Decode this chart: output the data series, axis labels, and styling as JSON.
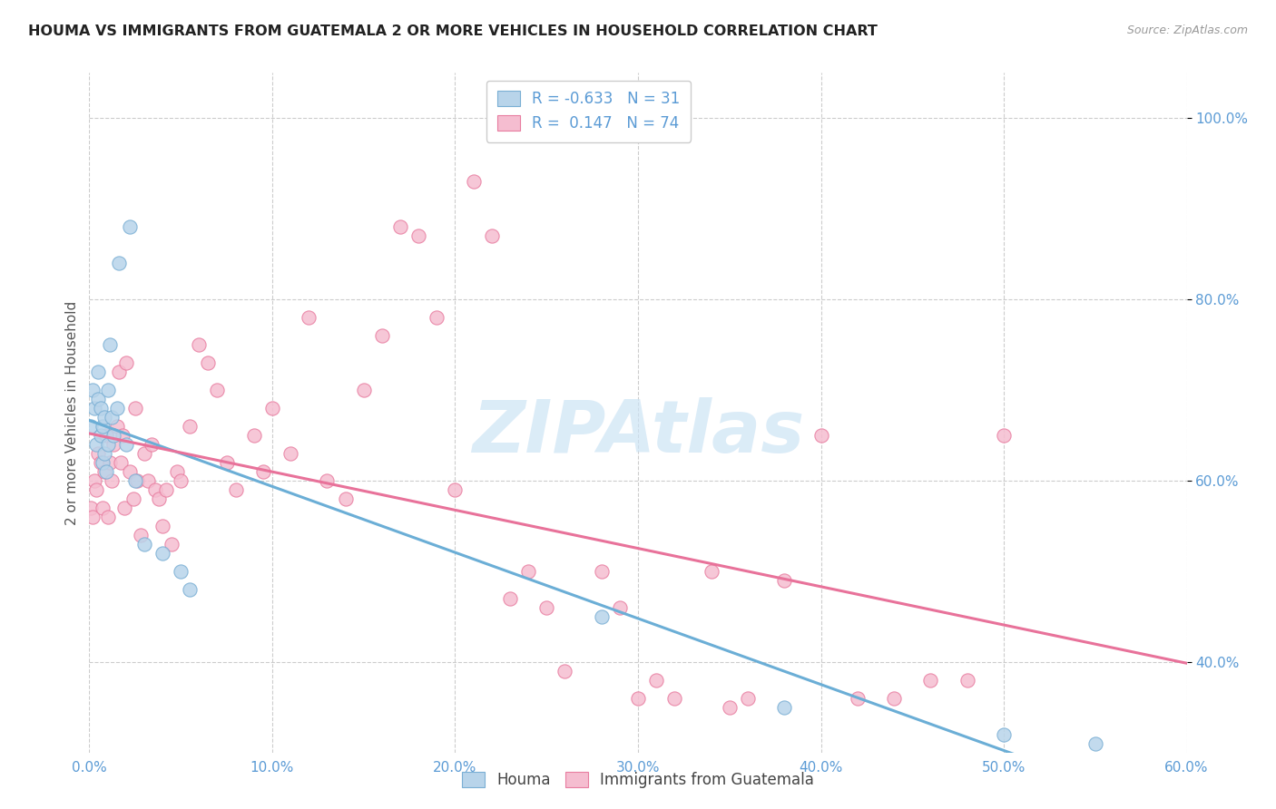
{
  "title": "HOUMA VS IMMIGRANTS FROM GUATEMALA 2 OR MORE VEHICLES IN HOUSEHOLD CORRELATION CHART",
  "source": "Source: ZipAtlas.com",
  "ylabel": "2 or more Vehicles in Household",
  "xlim": [
    0.0,
    0.6
  ],
  "ylim": [
    0.3,
    1.05
  ],
  "xtick_labels": [
    "0.0%",
    "10.0%",
    "20.0%",
    "30.0%",
    "40.0%",
    "50.0%",
    "60.0%"
  ],
  "xtick_values": [
    0.0,
    0.1,
    0.2,
    0.3,
    0.4,
    0.5,
    0.6
  ],
  "ytick_labels": [
    "40.0%",
    "60.0%",
    "80.0%",
    "100.0%"
  ],
  "ytick_values": [
    0.4,
    0.6,
    0.8,
    1.0
  ],
  "houma_R": -0.633,
  "houma_N": 31,
  "guatemala_R": 0.147,
  "guatemala_N": 74,
  "houma_color": "#b8d4ea",
  "houma_edge_color": "#7aafd4",
  "guatemala_color": "#f5bdd0",
  "guatemala_edge_color": "#e87da0",
  "houma_line_color": "#6baed6",
  "guatemala_line_color": "#e8729a",
  "watermark": "ZIPAtlas",
  "watermark_color": "#cde4f5",
  "houma_x": [
    0.001,
    0.002,
    0.003,
    0.004,
    0.005,
    0.005,
    0.006,
    0.006,
    0.007,
    0.007,
    0.008,
    0.008,
    0.009,
    0.01,
    0.01,
    0.011,
    0.012,
    0.013,
    0.015,
    0.016,
    0.02,
    0.022,
    0.025,
    0.03,
    0.04,
    0.05,
    0.055,
    0.28,
    0.38,
    0.5,
    0.55
  ],
  "houma_y": [
    0.66,
    0.7,
    0.68,
    0.64,
    0.69,
    0.72,
    0.68,
    0.65,
    0.66,
    0.62,
    0.63,
    0.67,
    0.61,
    0.7,
    0.64,
    0.75,
    0.67,
    0.65,
    0.68,
    0.84,
    0.64,
    0.88,
    0.6,
    0.53,
    0.52,
    0.5,
    0.48,
    0.45,
    0.35,
    0.32,
    0.31
  ],
  "guatemala_x": [
    0.001,
    0.002,
    0.003,
    0.004,
    0.005,
    0.006,
    0.007,
    0.008,
    0.009,
    0.01,
    0.011,
    0.012,
    0.013,
    0.015,
    0.016,
    0.017,
    0.018,
    0.019,
    0.02,
    0.022,
    0.024,
    0.025,
    0.026,
    0.028,
    0.03,
    0.032,
    0.034,
    0.036,
    0.038,
    0.04,
    0.042,
    0.045,
    0.048,
    0.05,
    0.055,
    0.06,
    0.065,
    0.07,
    0.075,
    0.08,
    0.09,
    0.095,
    0.1,
    0.11,
    0.12,
    0.13,
    0.14,
    0.15,
    0.16,
    0.17,
    0.18,
    0.19,
    0.2,
    0.21,
    0.22,
    0.23,
    0.24,
    0.25,
    0.26,
    0.28,
    0.29,
    0.3,
    0.31,
    0.32,
    0.34,
    0.35,
    0.36,
    0.38,
    0.4,
    0.42,
    0.44,
    0.46,
    0.48,
    0.5
  ],
  "guatemala_y": [
    0.57,
    0.56,
    0.6,
    0.59,
    0.63,
    0.62,
    0.57,
    0.61,
    0.65,
    0.56,
    0.62,
    0.6,
    0.64,
    0.66,
    0.72,
    0.62,
    0.65,
    0.57,
    0.73,
    0.61,
    0.58,
    0.68,
    0.6,
    0.54,
    0.63,
    0.6,
    0.64,
    0.59,
    0.58,
    0.55,
    0.59,
    0.53,
    0.61,
    0.6,
    0.66,
    0.75,
    0.73,
    0.7,
    0.62,
    0.59,
    0.65,
    0.61,
    0.68,
    0.63,
    0.78,
    0.6,
    0.58,
    0.7,
    0.76,
    0.88,
    0.87,
    0.78,
    0.59,
    0.93,
    0.87,
    0.47,
    0.5,
    0.46,
    0.39,
    0.5,
    0.46,
    0.36,
    0.38,
    0.36,
    0.5,
    0.35,
    0.36,
    0.49,
    0.65,
    0.36,
    0.36,
    0.38,
    0.38,
    0.65
  ]
}
